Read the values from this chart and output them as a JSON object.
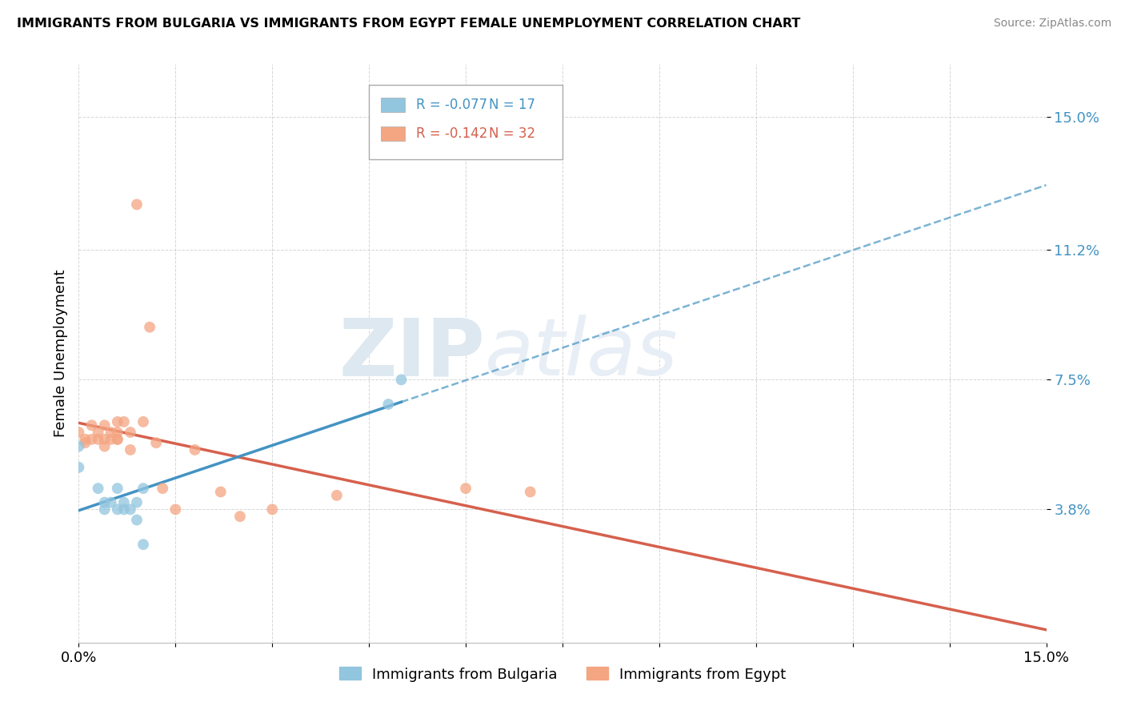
{
  "title": "IMMIGRANTS FROM BULGARIA VS IMMIGRANTS FROM EGYPT FEMALE UNEMPLOYMENT CORRELATION CHART",
  "source": "Source: ZipAtlas.com",
  "ylabel": "Female Unemployment",
  "xmin": 0.0,
  "xmax": 0.15,
  "ymin": 0.0,
  "ymax": 0.165,
  "yticks": [
    0.038,
    0.075,
    0.112,
    0.15
  ],
  "ytick_labels": [
    "3.8%",
    "7.5%",
    "11.2%",
    "15.0%"
  ],
  "legend_r1": "R = -0.077",
  "legend_n1": "N = 17",
  "legend_r2": "R = -0.142",
  "legend_n2": "N = 32",
  "legend_label1": "Immigrants from Bulgaria",
  "legend_label2": "Immigrants from Egypt",
  "color_bulgaria": "#92c5de",
  "color_egypt": "#f4a582",
  "trendline_color_bulgaria": "#4393c3",
  "trendline_color_egypt": "#d6604d",
  "watermark_zip": "ZIP",
  "watermark_atlas": "atlas",
  "bulgaria_x": [
    0.0,
    0.0,
    0.003,
    0.004,
    0.004,
    0.005,
    0.006,
    0.006,
    0.007,
    0.007,
    0.008,
    0.009,
    0.009,
    0.01,
    0.01,
    0.048,
    0.05
  ],
  "bulgaria_y": [
    0.056,
    0.05,
    0.044,
    0.038,
    0.04,
    0.04,
    0.044,
    0.038,
    0.04,
    0.038,
    0.038,
    0.035,
    0.04,
    0.028,
    0.044,
    0.068,
    0.075
  ],
  "egypt_x": [
    0.0,
    0.001,
    0.001,
    0.002,
    0.002,
    0.003,
    0.003,
    0.004,
    0.004,
    0.004,
    0.005,
    0.005,
    0.006,
    0.006,
    0.006,
    0.006,
    0.007,
    0.008,
    0.008,
    0.009,
    0.01,
    0.011,
    0.012,
    0.013,
    0.015,
    0.018,
    0.022,
    0.025,
    0.03,
    0.04,
    0.06,
    0.07
  ],
  "egypt_y": [
    0.06,
    0.057,
    0.058,
    0.058,
    0.062,
    0.058,
    0.06,
    0.058,
    0.062,
    0.056,
    0.058,
    0.06,
    0.063,
    0.06,
    0.058,
    0.058,
    0.063,
    0.055,
    0.06,
    0.125,
    0.063,
    0.09,
    0.057,
    0.044,
    0.038,
    0.055,
    0.043,
    0.036,
    0.038,
    0.042,
    0.044,
    0.043
  ],
  "bg_trendline_solid_xmax": 0.05,
  "eg_trendline_solid_xmax": 0.15
}
